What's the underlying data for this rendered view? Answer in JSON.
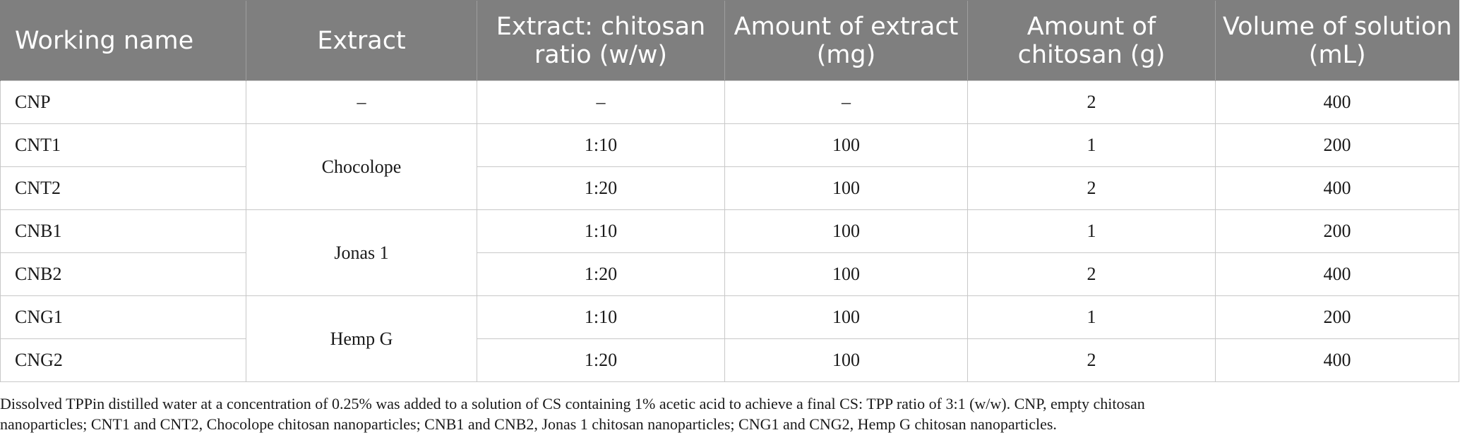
{
  "table": {
    "headers": [
      "Working name",
      "Extract",
      "Extract: chitosan ratio (w/w)",
      "Amount of extract (mg)",
      "Amount of chitosan (g)",
      "Volume of solution (mL)"
    ],
    "rows": [
      {
        "name": "CNP",
        "extract": "–",
        "ratio": "–",
        "extract_mg": "–",
        "chitosan_g": "2",
        "volume_ml": "400"
      },
      {
        "name": "CNT1",
        "extract": "Chocolope",
        "ratio": "1:10",
        "extract_mg": "100",
        "chitosan_g": "1",
        "volume_ml": "200"
      },
      {
        "name": "CNT2",
        "ratio": "1:20",
        "extract_mg": "100",
        "chitosan_g": "2",
        "volume_ml": "400"
      },
      {
        "name": "CNB1",
        "extract": "Jonas 1",
        "ratio": "1:10",
        "extract_mg": "100",
        "chitosan_g": "1",
        "volume_ml": "200"
      },
      {
        "name": "CNB2",
        "ratio": "1:20",
        "extract_mg": "100",
        "chitosan_g": "2",
        "volume_ml": "400"
      },
      {
        "name": "CNG1",
        "extract": "Hemp G",
        "ratio": "1:10",
        "extract_mg": "100",
        "chitosan_g": "1",
        "volume_ml": "200"
      },
      {
        "name": "CNG2",
        "ratio": "1:20",
        "extract_mg": "100",
        "chitosan_g": "2",
        "volume_ml": "400"
      }
    ]
  },
  "footnote": {
    "line1": "Dissolved TPPin distilled water at a concentration of 0.25% was added to a solution of CS containing 1% acetic acid to achieve a final CS: TPP ratio of 3:1 (w/w). CNP, empty chitosan",
    "line2": "nanoparticles; CNT1 and CNT2, Chocolope chitosan nanoparticles; CNB1 and CNB2, Jonas 1 chitosan nanoparticles; CNG1 and CNG2, Hemp G chitosan nanoparticles."
  }
}
